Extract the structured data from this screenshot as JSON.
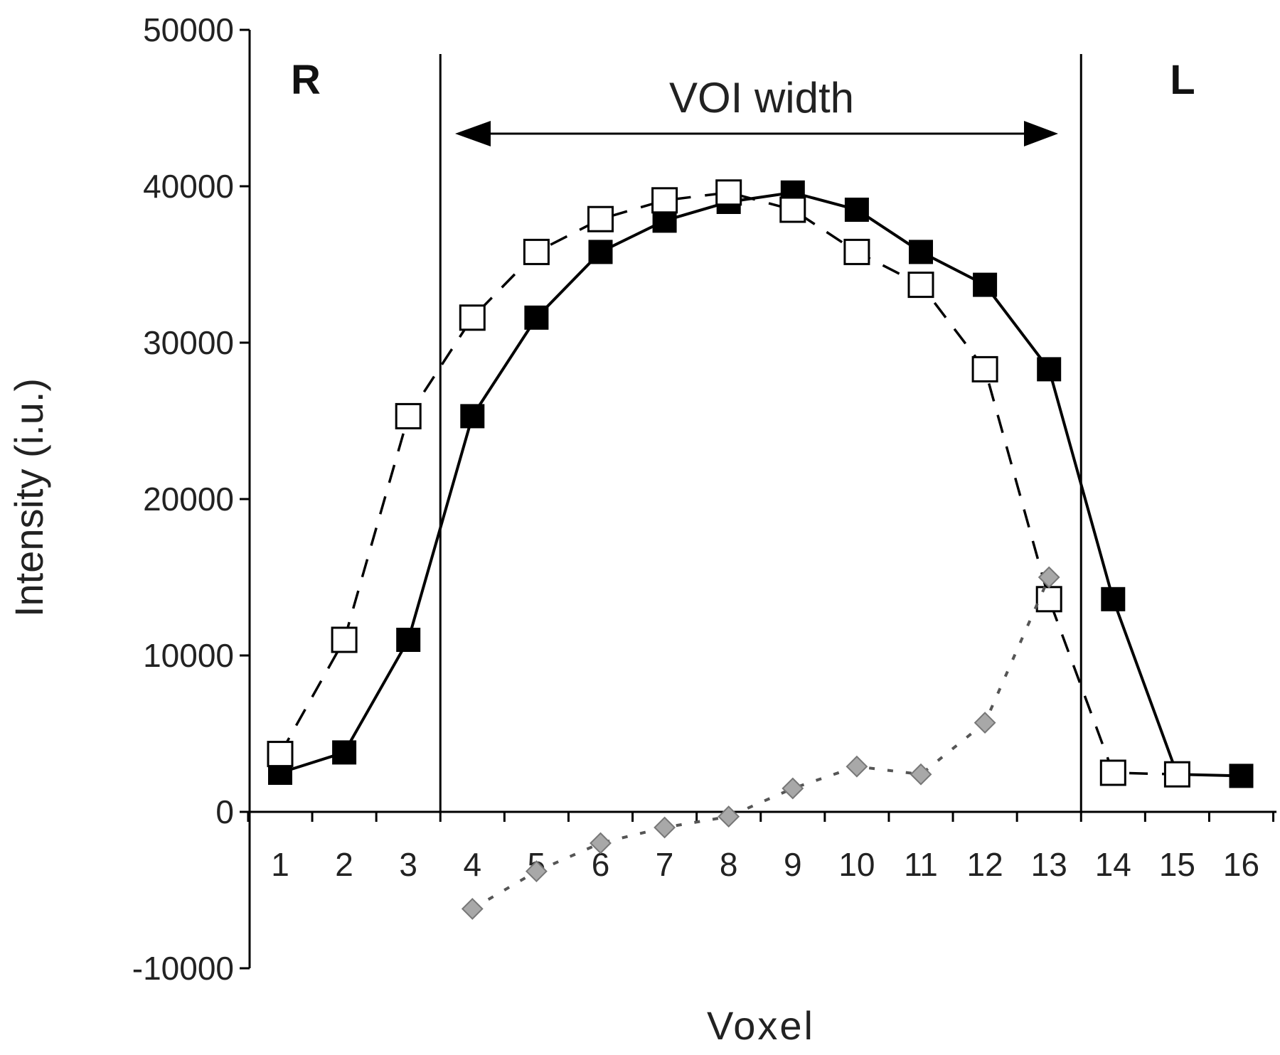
{
  "chart_data": {
    "type": "line",
    "xlabel": "Voxel",
    "ylabel": "Intensity (i.u.)",
    "ylim": [
      -10000,
      50000
    ],
    "yticks": [
      -10000,
      0,
      10000,
      20000,
      30000,
      40000,
      50000
    ],
    "x": [
      1,
      2,
      3,
      4,
      5,
      6,
      7,
      8,
      9,
      10,
      11,
      12,
      13,
      14,
      15,
      16
    ],
    "grid": false,
    "legend": "none",
    "series": [
      {
        "marker": "filled-square",
        "line": "solid",
        "color": "#000000",
        "x": [
          1,
          2,
          3,
          4,
          5,
          6,
          7,
          8,
          9,
          10,
          11,
          12,
          13,
          14,
          15,
          16
        ],
        "values": [
          2500,
          3800,
          11000,
          25300,
          31600,
          35800,
          37800,
          39000,
          39600,
          38500,
          35800,
          33700,
          28300,
          13600,
          2400,
          2300
        ]
      },
      {
        "marker": "open-square",
        "line": "dashed",
        "color": "#000000",
        "x": [
          1,
          2,
          3,
          4,
          5,
          6,
          7,
          8,
          9,
          10,
          11,
          12,
          13,
          14,
          15
        ],
        "values": [
          3700,
          11000,
          25300,
          31600,
          35800,
          37900,
          39100,
          39600,
          38500,
          35800,
          33700,
          28300,
          13600,
          2500,
          2400
        ]
      },
      {
        "marker": "gray-diamond",
        "line": "dotted",
        "color": "#999999",
        "x": [
          4,
          5,
          6,
          7,
          8,
          9,
          10,
          11,
          12,
          13
        ],
        "values": [
          -6200,
          -3800,
          -2000,
          -1000,
          -300,
          1500,
          2900,
          2400,
          5700,
          15000
        ]
      }
    ],
    "annotations": {
      "left_label": "R",
      "right_label": "L",
      "voi_label": "VOI width",
      "voi_bounds": [
        3.5,
        13.5
      ]
    }
  }
}
